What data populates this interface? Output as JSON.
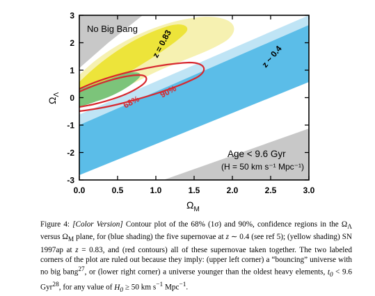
{
  "chart_data": {
    "type": "contour",
    "xlabel": "Ω_M",
    "ylabel": "Ω_Λ",
    "xlim": [
      0,
      3
    ],
    "ylim": [
      -3,
      3
    ],
    "x_ticks": [
      "0.0",
      "0.5",
      "1.0",
      "1.5",
      "2.0",
      "2.5",
      "3.0"
    ],
    "y_ticks": [
      "3",
      "2",
      "1",
      "0",
      "-1",
      "-2",
      "-3"
    ],
    "annotations": {
      "no_big_bang": "No Big Bang",
      "z083": "z = 0.83",
      "z04": "z ~ 0.4",
      "c68": "68%",
      "c90": "90%",
      "age": "Age < 9.6 Gyr",
      "h": "(H = 50 km s⁻¹ Mpc⁻¹)"
    },
    "regions": [
      {
        "name": "blue shading",
        "data_set": "z ~ 0.4 supernovae",
        "colors": [
          "#bfe4f5",
          "#5bbde8"
        ]
      },
      {
        "name": "yellow shading",
        "data_set": "SN 1997ap at z = 0.83",
        "colors": [
          "#f5f0a8",
          "#ede43a"
        ]
      },
      {
        "name": "red contours",
        "levels": [
          "68%",
          "90%"
        ],
        "color": "#d7282f"
      },
      {
        "name": "ruled out corners",
        "color": "#c8c8c8"
      }
    ]
  },
  "caption": {
    "label": "Figure 4: ",
    "version": "[Color Version]",
    "line1": " Contour plot of the 68% (1σ) and 90%, confidence regions in the",
    "line2a": "Ω",
    "line2b": " versus Ω",
    "line2c": " plane, for (blue shading) the five supernovae at ",
    "line2d": " ∼ 0.4 (see ref 5); (yellow",
    "line3a": "shading) SN 1997ap at ",
    "line3b": " = 0.83, and (red contours) all of these supernovae taken together.",
    "line4": "The two labeled corners of the plot are ruled out because they imply: (upper left corner) a",
    "line5a": "“bouncing” universe with no big bang",
    "line5b": "27",
    "line5c": ", or (lower right corner) a universe younger than the",
    "line6a": "oldest heavy elements, ",
    "line6b": " < 9.6 Gyr",
    "line6c": "28",
    "line6d": ", for any value of ",
    "line6e": " ≥ 50 km s",
    "line6f": "−1",
    "line6g": " Mpc",
    "line6h": "−1",
    "line6i": "."
  }
}
